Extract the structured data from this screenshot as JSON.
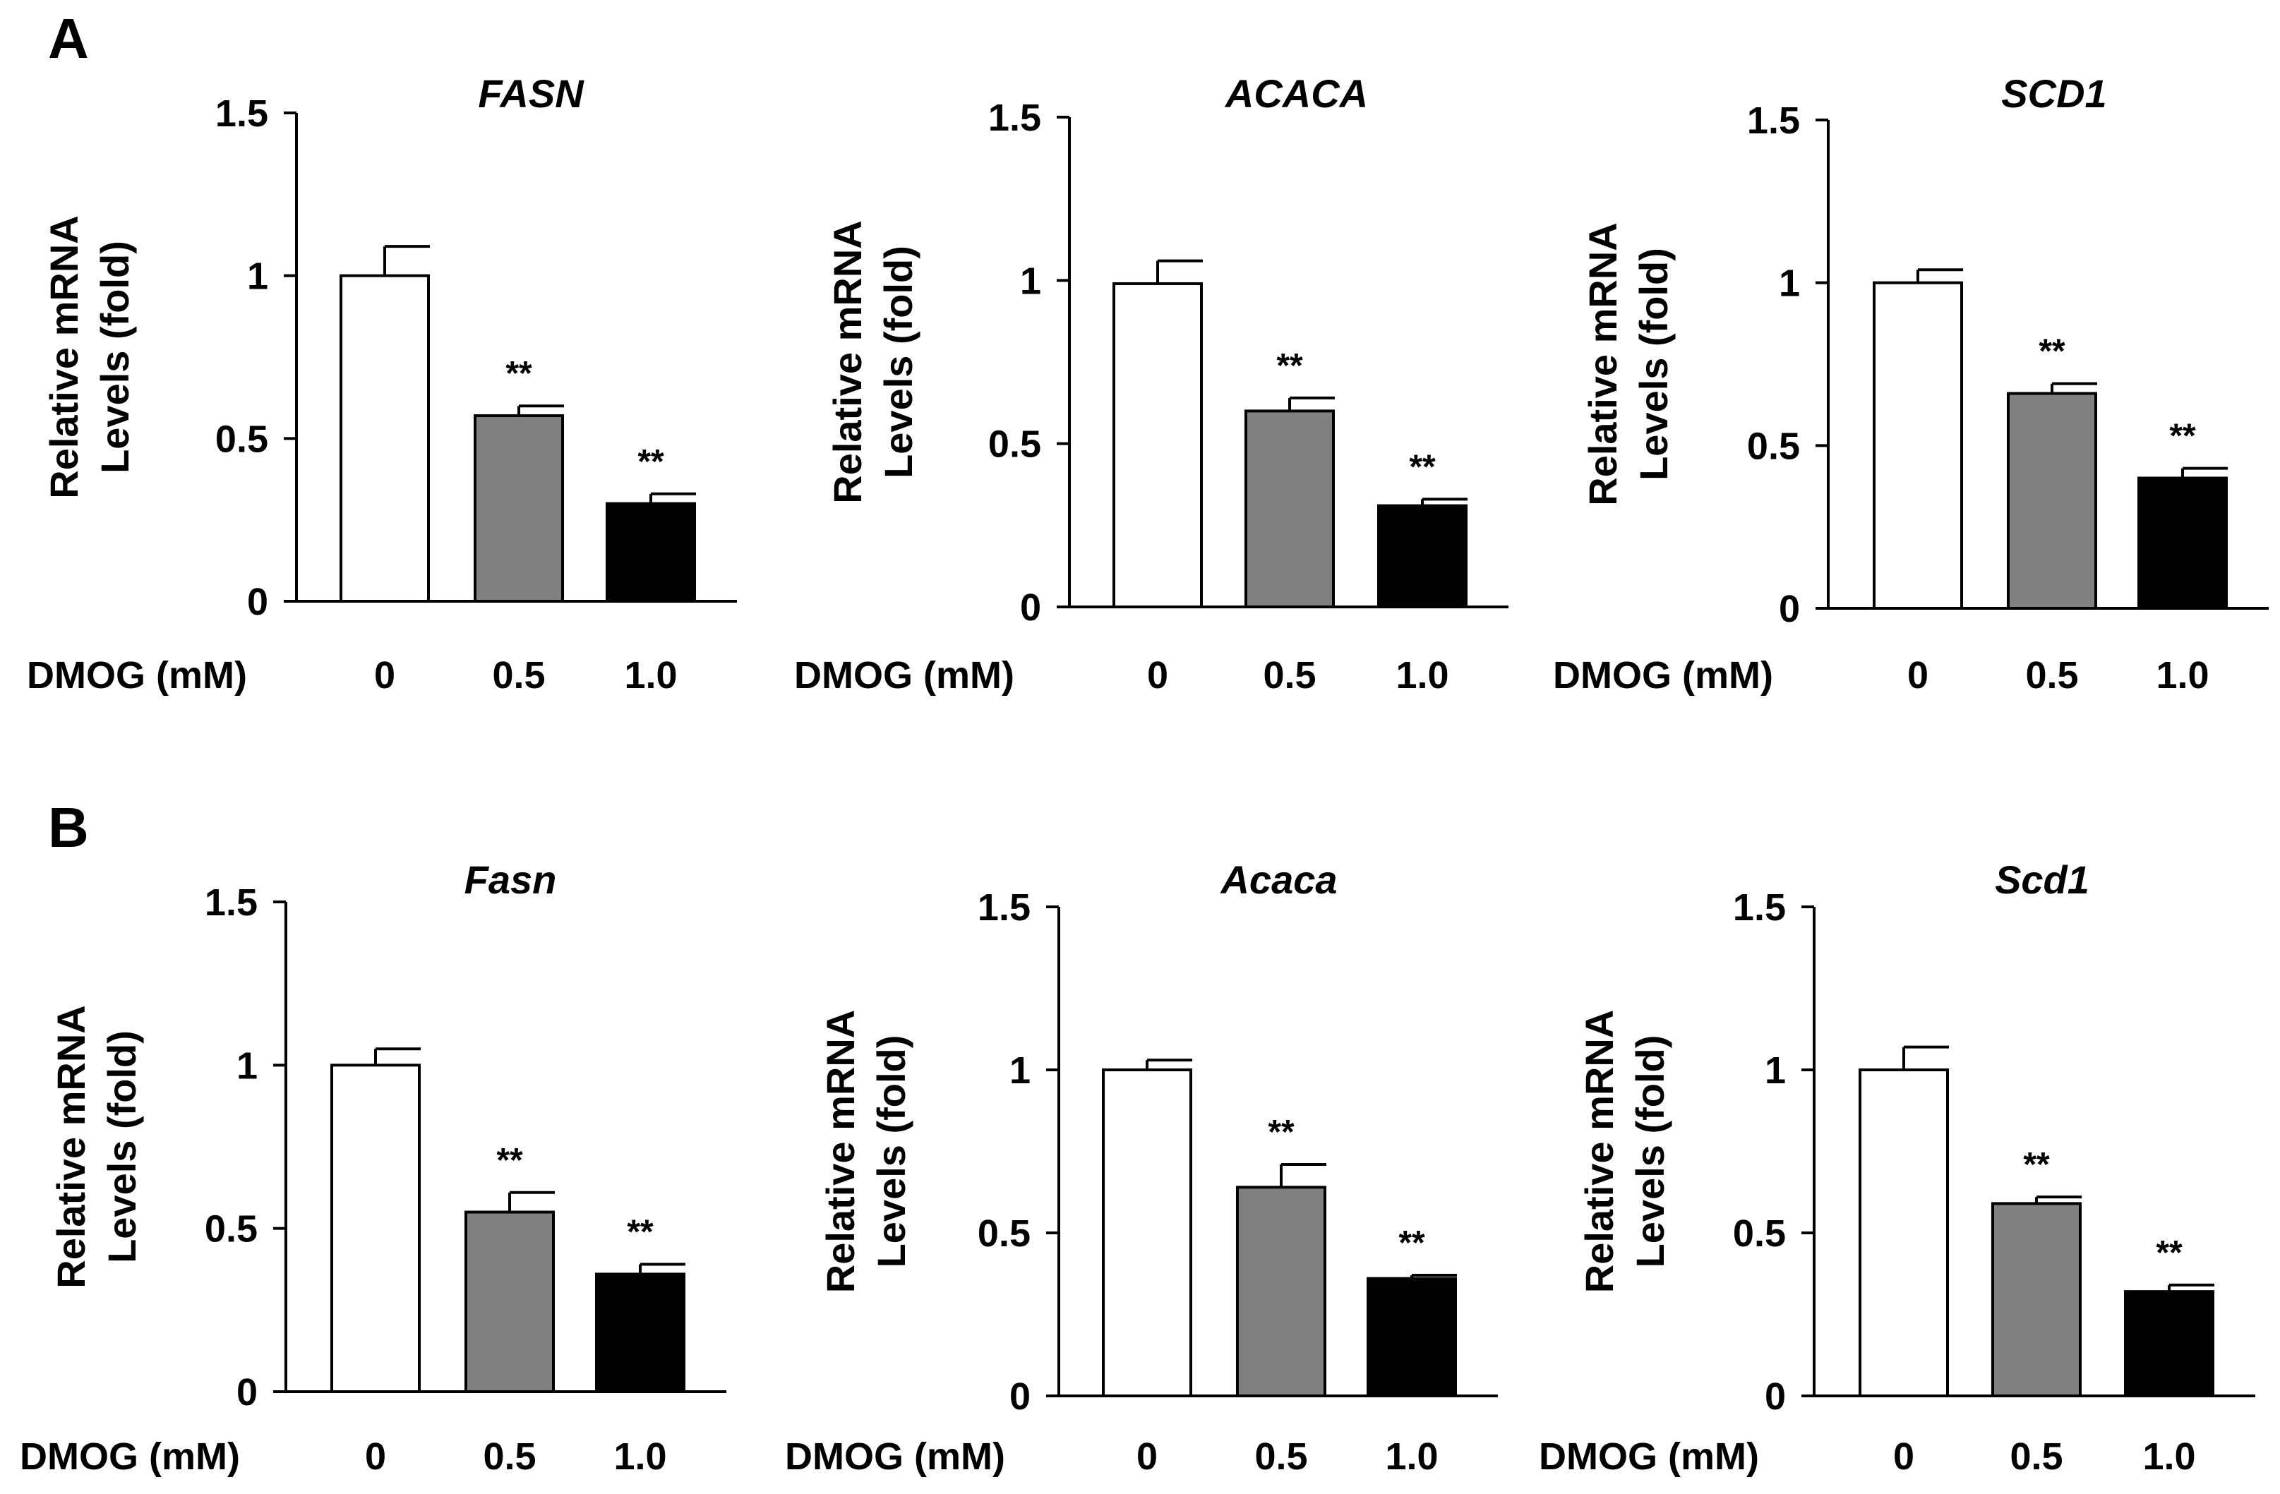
{
  "panel_labels": [
    "A",
    "B"
  ],
  "chart_data": [
    {
      "type": "bar",
      "panel": "A",
      "title": "FASN",
      "xlabel": "DMOG (mM)",
      "ylabel": [
        "Relative mRNA",
        "Levels (fold)"
      ],
      "ylim": [
        0,
        1.5
      ],
      "yticks": [
        "0",
        "0.5",
        "1",
        "1.5"
      ],
      "categories": [
        "0",
        "0.5",
        "1.0"
      ],
      "values": [
        1.0,
        0.57,
        0.3
      ],
      "errors": [
        0.09,
        0.03,
        0.03
      ],
      "significance": [
        "",
        "**",
        "**"
      ],
      "colors": [
        "#ffffff",
        "#808080",
        "#000000"
      ]
    },
    {
      "type": "bar",
      "panel": "A",
      "title": "ACACA",
      "xlabel": "DMOG (mM)",
      "ylabel": [
        "Relative mRNA",
        "Levels (fold)"
      ],
      "ylim": [
        0,
        1.5
      ],
      "yticks": [
        "0",
        "0.5",
        "1",
        "1.5"
      ],
      "categories": [
        "0",
        "0.5",
        "1.0"
      ],
      "values": [
        0.99,
        0.6,
        0.31
      ],
      "errors": [
        0.07,
        0.04,
        0.02
      ],
      "significance": [
        "",
        "**",
        "**"
      ],
      "colors": [
        "#ffffff",
        "#808080",
        "#000000"
      ]
    },
    {
      "type": "bar",
      "panel": "A",
      "title": "SCD1",
      "xlabel": "DMOG (mM)",
      "ylabel": [
        "Relative mRNA",
        "Levels (fold)"
      ],
      "ylim": [
        0,
        1.5
      ],
      "yticks": [
        "0",
        "0.5",
        "1",
        "1.5"
      ],
      "categories": [
        "0",
        "0.5",
        "1.0"
      ],
      "values": [
        1.0,
        0.66,
        0.4
      ],
      "errors": [
        0.04,
        0.03,
        0.03
      ],
      "significance": [
        "",
        "**",
        "**"
      ],
      "colors": [
        "#ffffff",
        "#808080",
        "#000000"
      ]
    },
    {
      "type": "bar",
      "panel": "B",
      "title": "Fasn",
      "xlabel": "DMOG (mM)",
      "ylabel": [
        "Relative mRNA",
        "Levels (fold)"
      ],
      "ylim": [
        0,
        1.5
      ],
      "yticks": [
        "0",
        "0.5",
        "1",
        "1.5"
      ],
      "categories": [
        "0",
        "0.5",
        "1.0"
      ],
      "values": [
        1.0,
        0.55,
        0.36
      ],
      "errors": [
        0.05,
        0.06,
        0.03
      ],
      "significance": [
        "",
        "**",
        "**"
      ],
      "colors": [
        "#ffffff",
        "#808080",
        "#000000"
      ]
    },
    {
      "type": "bar",
      "panel": "B",
      "title": "Acaca",
      "xlabel": "DMOG (mM)",
      "ylabel": [
        "Relative mRNA",
        "Levels (fold)"
      ],
      "ylim": [
        0,
        1.5
      ],
      "yticks": [
        "0",
        "0.5",
        "1",
        "1.5"
      ],
      "categories": [
        "0",
        "0.5",
        "1.0"
      ],
      "values": [
        1.0,
        0.64,
        0.36
      ],
      "errors": [
        0.03,
        0.07,
        0.01
      ],
      "significance": [
        "",
        "**",
        "**"
      ],
      "colors": [
        "#ffffff",
        "#808080",
        "#000000"
      ]
    },
    {
      "type": "bar",
      "panel": "B",
      "title": "Scd1",
      "xlabel": "DMOG (mM)",
      "ylabel": [
        "Relative mRNA",
        "Levels (fold)"
      ],
      "ylim": [
        0,
        1.5
      ],
      "yticks": [
        "0",
        "0.5",
        "1",
        "1.5"
      ],
      "categories": [
        "0",
        "0.5",
        "1.0"
      ],
      "values": [
        1.0,
        0.59,
        0.32
      ],
      "errors": [
        0.07,
        0.02,
        0.02
      ],
      "significance": [
        "",
        "**",
        "**"
      ],
      "colors": [
        "#ffffff",
        "#808080",
        "#000000"
      ]
    }
  ]
}
